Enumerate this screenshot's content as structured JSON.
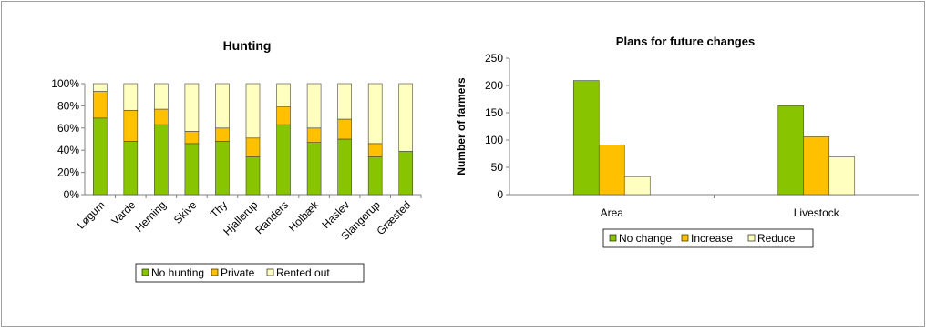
{
  "colors": {
    "no_hunting": "#88c400",
    "private": "#ffc000",
    "rented_out": "#ffffc0",
    "axis": "#808080",
    "bar_stroke": "#000000"
  },
  "chart_data": [
    {
      "type": "bar",
      "stacked": true,
      "percent": true,
      "title": "Hunting",
      "categories": [
        "Løgum",
        "Varde",
        "Herning",
        "Skive",
        "Thy",
        "Hjallerup",
        "Randers",
        "Holbæk",
        "Haslev",
        "Slangerup",
        "Græsted"
      ],
      "series": [
        {
          "name": "No hunting",
          "values": [
            69,
            48,
            63,
            46,
            48,
            34,
            63,
            47,
            50,
            34,
            39
          ]
        },
        {
          "name": "Private",
          "values": [
            24,
            28,
            14,
            11,
            12,
            17,
            16,
            13,
            18,
            12,
            0
          ]
        },
        {
          "name": "Rented out",
          "values": [
            7,
            24,
            23,
            43,
            40,
            49,
            21,
            40,
            32,
            54,
            61
          ]
        }
      ],
      "ylim": [
        0,
        100
      ],
      "yticks": [
        "0%",
        "20%",
        "40%",
        "60%",
        "80%",
        "100%"
      ],
      "legend": "bottom",
      "grid": false
    },
    {
      "type": "bar",
      "title": "Plans for future changes",
      "ylabel": "Number of farmers",
      "categories": [
        "Area",
        "Livestock"
      ],
      "series": [
        {
          "name": "No change",
          "values": [
            209,
            163
          ]
        },
        {
          "name": "Increase",
          "values": [
            91,
            106
          ]
        },
        {
          "name": "Reduce",
          "values": [
            33,
            69
          ]
        }
      ],
      "ylim": [
        0,
        250
      ],
      "yticks": [
        "0",
        "50",
        "100",
        "150",
        "200",
        "250"
      ],
      "legend": "bottom",
      "grid": false
    }
  ]
}
